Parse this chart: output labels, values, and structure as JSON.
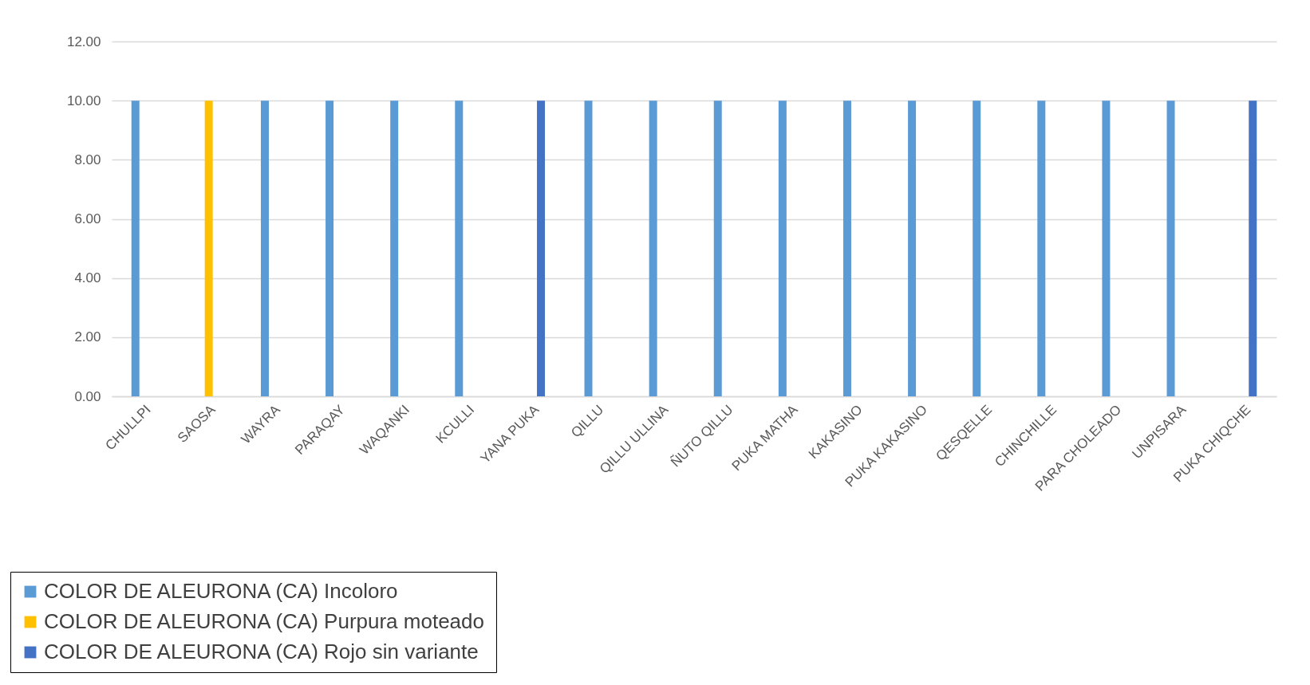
{
  "chart_data": {
    "type": "bar",
    "categories": [
      "CHULLPI",
      "SAOSA",
      "WAYRA",
      "PARAQAY",
      "WAQANKI",
      "KCULLI",
      "YANA PUKA",
      "QILLU",
      "QILLU ULLINA",
      "ÑUTO QILLU",
      "PUKA MATHA",
      "KAKASINO",
      "PUKA KAKASINO",
      "QESQELLE",
      "CHINCHILLE",
      "PARA CHOLEADO",
      "UNPISARA",
      "PUKA CHIQCHE"
    ],
    "series": [
      {
        "name": "COLOR DE ALEURONA (CA) Incoloro",
        "color": "#5b9bd5",
        "values": [
          10,
          null,
          10,
          10,
          10,
          10,
          null,
          10,
          10,
          10,
          10,
          10,
          10,
          10,
          10,
          10,
          10,
          null
        ]
      },
      {
        "name": "COLOR DE ALEURONA (CA) Purpura moteado",
        "color": "#ffc000",
        "values": [
          null,
          10,
          null,
          null,
          null,
          null,
          null,
          null,
          null,
          null,
          null,
          null,
          null,
          null,
          null,
          null,
          null,
          null
        ]
      },
      {
        "name": "COLOR DE ALEURONA (CA) Rojo sin variante",
        "color": "#4472c4",
        "values": [
          null,
          null,
          null,
          null,
          null,
          null,
          10,
          null,
          null,
          null,
          null,
          null,
          null,
          null,
          null,
          null,
          null,
          10
        ]
      }
    ],
    "ylim": [
      0,
      12
    ],
    "yticks": [
      {
        "value": 0,
        "label": "0.00"
      },
      {
        "value": 2,
        "label": "2.00"
      },
      {
        "value": 4,
        "label": "4.00"
      },
      {
        "value": 6,
        "label": "6.00"
      },
      {
        "value": 8,
        "label": "8.00"
      },
      {
        "value": 10,
        "label": "10.00"
      },
      {
        "value": 12,
        "label": "12.00"
      }
    ],
    "grid": "y",
    "legend": "bottom left"
  }
}
